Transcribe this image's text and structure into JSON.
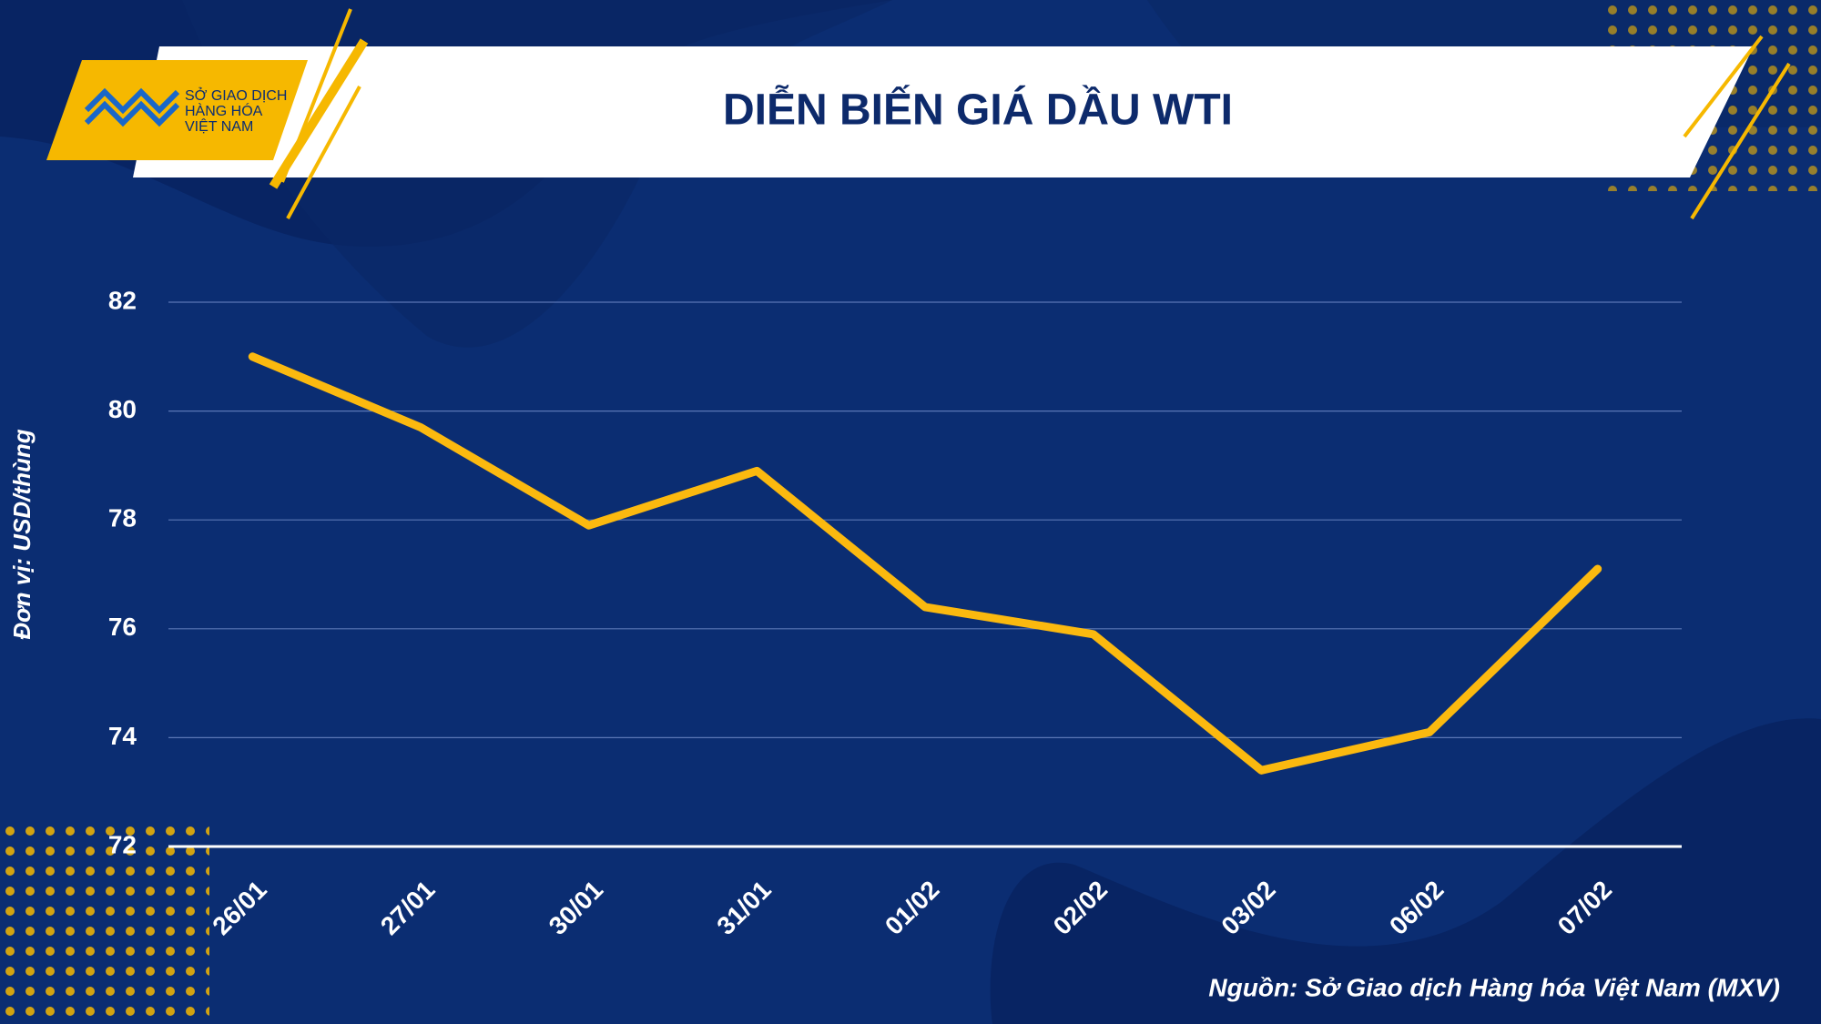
{
  "chart_data": {
    "type": "line",
    "title": "DIỄN BIẾN GIÁ DẦU WTI",
    "logo": [
      "SỞ GIAO DỊCH",
      "HÀNG HÓA",
      "VIỆT NAM"
    ],
    "y_label": "Đơn vị: USD/thùng",
    "source": "Nguồn: Sở Giao dịch Hàng hóa Việt Nam (MXV)",
    "categories": [
      "26/01",
      "27/01",
      "30/01",
      "31/01",
      "01/02",
      "02/02",
      "03/02",
      "06/02",
      "07/02"
    ],
    "values": [
      81.0,
      79.7,
      77.9,
      78.9,
      76.4,
      75.9,
      73.4,
      74.1,
      77.1
    ],
    "color": "#fbb90f",
    "ylim": [
      72,
      82
    ],
    "yticks": [
      72,
      74,
      76,
      78,
      80,
      82
    ],
    "grid": true
  }
}
